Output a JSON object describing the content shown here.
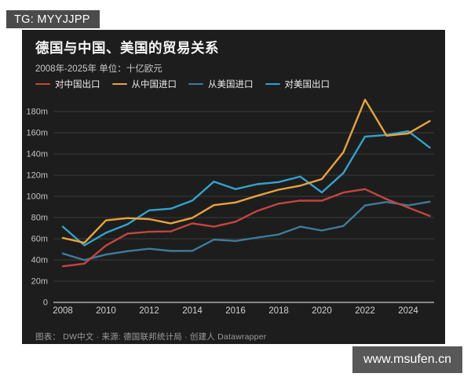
{
  "page": {
    "badge_text": "TG: MYYJJPP",
    "watermark_text": "www.msufen.cn"
  },
  "chart": {
    "title": "德国与中国、美国的贸易关系",
    "subtitle": "2008年-2025年 单位：十亿欧元",
    "footer": "图表： DW中文 · 来源: 德国联邦统计局 · 创建人 Datawrapper",
    "card_bg": "#1d1d1d",
    "grid_color": "#3b3b3b",
    "axis_color": "#c9c9c9",
    "tick_text_color": "#c2c2c2"
  },
  "chart_data": {
    "type": "line",
    "title": "德国与中国、美国的贸易关系",
    "subtitle": "2008年-2025年 单位：十亿欧元",
    "unit": "十亿欧元",
    "x": [
      2008,
      2009,
      2010,
      2011,
      2012,
      2013,
      2014,
      2015,
      2016,
      2017,
      2018,
      2019,
      2020,
      2021,
      2022,
      2023,
      2024,
      2025
    ],
    "x_tick_labels": [
      "2008",
      "2010",
      "2012",
      "2014",
      "2016",
      "2018",
      "2020",
      "2022",
      "2024"
    ],
    "ylim": [
      0,
      195
    ],
    "y_ticks": [
      0,
      20,
      40,
      60,
      80,
      100,
      120,
      140,
      160,
      180
    ],
    "y_tick_suffix": "m",
    "grid": "horizontal",
    "legend_position": "top",
    "series": [
      {
        "name": "对中国出口",
        "color": "#c4453f",
        "values": [
          34.0,
          36.5,
          53.6,
          64.9,
          66.6,
          67.0,
          74.5,
          71.4,
          76.1,
          86.2,
          93.1,
          96.0,
          95.9,
          103.6,
          106.8,
          97.3,
          89.4,
          81.5
        ]
      },
      {
        "name": "从中国进口",
        "color": "#e8a33c",
        "values": [
          60.8,
          56.2,
          77.3,
          79.5,
          78.5,
          74.5,
          79.7,
          91.7,
          94.2,
          100.5,
          106.3,
          110.1,
          116.3,
          141.7,
          191.2,
          157.2,
          159.3,
          171.0
        ]
      },
      {
        "name": "从美国进口",
        "color": "#3d7c9b",
        "values": [
          46.1,
          39.9,
          45.1,
          48.3,
          50.6,
          48.5,
          48.6,
          59.2,
          57.9,
          61.1,
          64.1,
          71.4,
          67.8,
          72.1,
          91.4,
          94.7,
          91.5,
          95.0
        ]
      },
      {
        "name": "对美国出口",
        "color": "#34a2cd",
        "values": [
          71.4,
          53.8,
          65.6,
          73.7,
          86.8,
          88.4,
          96.0,
          113.9,
          106.8,
          111.5,
          113.5,
          118.7,
          103.7,
          122.1,
          156.4,
          157.9,
          161.4,
          146.0
        ]
      }
    ]
  }
}
